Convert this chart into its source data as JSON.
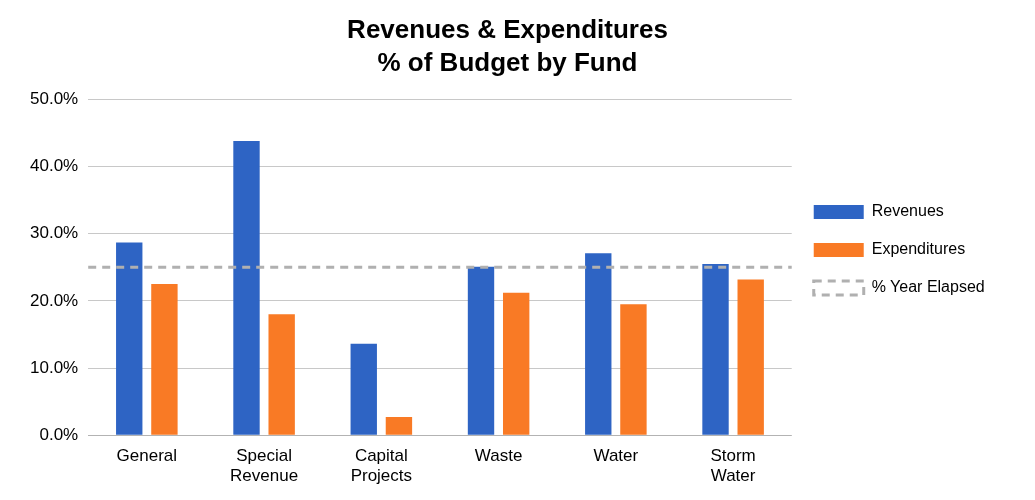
{
  "chart_data": {
    "type": "bar",
    "title": "Revenues & Expenditures",
    "subtitle": "% of Budget by Fund",
    "categories": [
      "General",
      "Special Revenue",
      "Capital Projects",
      "Waste",
      "Water",
      "Storm Water"
    ],
    "series": [
      {
        "name": "Revenues",
        "color": "#2e64c4",
        "values": [
          28.7,
          43.8,
          13.6,
          25.1,
          27.1,
          25.5
        ]
      },
      {
        "name": "Expenditures",
        "color": "#f97a25",
        "values": [
          22.5,
          18.0,
          2.7,
          21.2,
          19.5,
          23.2
        ]
      }
    ],
    "ylim": [
      0,
      50
    ],
    "yticks": [
      {
        "value": 0,
        "label": "0.0%"
      },
      {
        "value": 10,
        "label": "10.0%"
      },
      {
        "value": 20,
        "label": "20.0%"
      },
      {
        "value": 30,
        "label": "30.0%"
      },
      {
        "value": 40,
        "label": "40.0%"
      },
      {
        "value": 50,
        "label": "50.0%"
      }
    ],
    "ref_lines": [
      {
        "axis": "y",
        "value": 25,
        "label": "% Year Elapsed",
        "color": "#b0b0b0",
        "line_style": "dashed"
      }
    ],
    "grid": "y",
    "legend": "right"
  }
}
